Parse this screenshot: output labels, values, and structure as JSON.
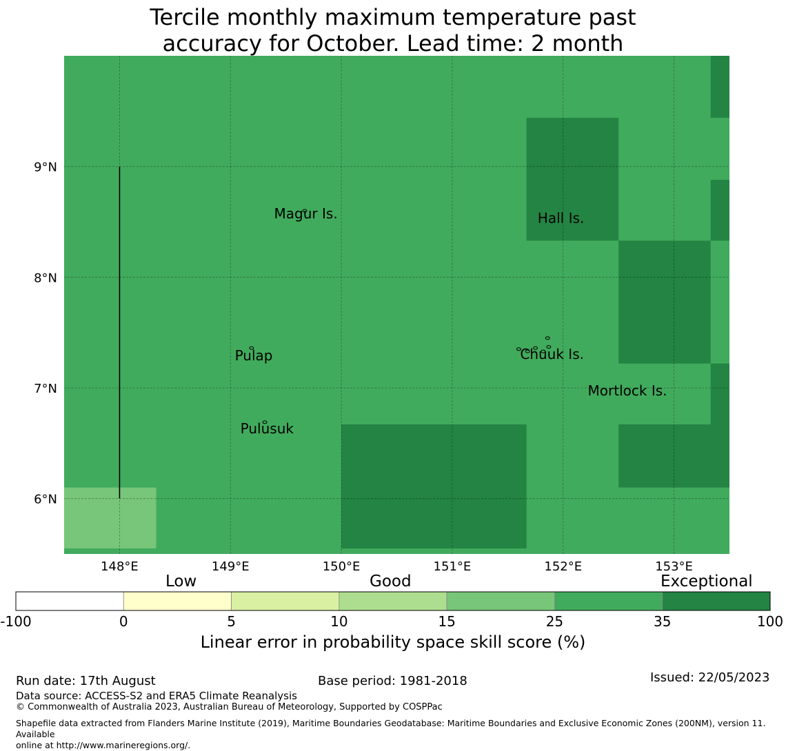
{
  "title_line1": "Tercile monthly maximum temperature past",
  "title_line2": "accuracy for October. Lead time: 2 month",
  "map": {
    "lon_range": [
      147.5,
      153.5
    ],
    "lat_range": [
      5.5,
      10.0
    ],
    "lat_ticks": [
      {
        "value": 9,
        "label": "9°N"
      },
      {
        "value": 8,
        "label": "8°N"
      },
      {
        "value": 7,
        "label": "7°N"
      },
      {
        "value": 6,
        "label": "6°N"
      }
    ],
    "lon_ticks": [
      {
        "value": 148,
        "label": "148°E"
      },
      {
        "value": 149,
        "label": "149°E"
      },
      {
        "value": 150,
        "label": "150°E"
      },
      {
        "value": 151,
        "label": "151°E"
      },
      {
        "value": 152,
        "label": "152°E"
      },
      {
        "value": 153,
        "label": "153°E"
      }
    ],
    "base_color": "#41ab5d",
    "skill_cells": [
      {
        "lon": [
          147.5,
          148.33
        ],
        "lat": [
          5.55,
          6.1
        ],
        "category": "15-25",
        "color": "#78c679"
      },
      {
        "lon": [
          150.0,
          151.67
        ],
        "lat": [
          5.55,
          6.67
        ],
        "category": "35-100",
        "color": "#238443"
      },
      {
        "lon": [
          151.67,
          152.5
        ],
        "lat": [
          8.33,
          9.44
        ],
        "category": "35-100",
        "color": "#238443"
      },
      {
        "lon": [
          152.5,
          153.33
        ],
        "lat": [
          7.22,
          8.33
        ],
        "category": "35-100",
        "color": "#238443"
      },
      {
        "lon": [
          152.5,
          153.5
        ],
        "lat": [
          6.1,
          6.67
        ],
        "category": "35-100",
        "color": "#238443"
      },
      {
        "lon": [
          153.33,
          153.5
        ],
        "lat": [
          6.67,
          7.22
        ],
        "category": "35-100",
        "color": "#238443"
      },
      {
        "lon": [
          153.33,
          153.5
        ],
        "lat": [
          8.33,
          8.88
        ],
        "category": "35-100",
        "color": "#238443"
      },
      {
        "lon": [
          153.33,
          153.5
        ],
        "lat": [
          9.44,
          10.0
        ],
        "category": "35-100",
        "color": "#238443"
      }
    ],
    "places": [
      {
        "name": "Magur Is.",
        "lon": 149.68,
        "lat": 8.53
      },
      {
        "name": "Hall Is.",
        "lon": 151.98,
        "lat": 8.49
      },
      {
        "name": "Pulap",
        "lon": 149.21,
        "lat": 7.25
      },
      {
        "name": "Chuuk Is.",
        "lon": 151.9,
        "lat": 7.26
      },
      {
        "name": "Mortlock Is.",
        "lon": 152.58,
        "lat": 6.93
      },
      {
        "name": "Pulusuk",
        "lon": 149.33,
        "lat": 6.59
      }
    ]
  },
  "colorbar": {
    "category_labels": [
      "Low",
      "Good",
      "Exceptional"
    ],
    "ticks": [
      "-100",
      "0",
      "5",
      "10",
      "15",
      "25",
      "35",
      "100"
    ],
    "colors": [
      "#ffffff",
      "#ffffcc",
      "#d9f0a3",
      "#addd8e",
      "#78c679",
      "#41ab5d",
      "#238443"
    ],
    "title": "Linear error in probability space skill score (%)"
  },
  "footer": {
    "run_date": "Run date: 17th August",
    "base_period": "Base period: 1981-2018",
    "issued": "Issued: 22/05/2023",
    "data_source": "Data source: ACCESS-S2 and ERA5 Climate Reanalysis",
    "copyright": "© Commonwealth of Australia 2023, Australian Bureau of Meteorology, Supported by COSPPac",
    "shapefile_line1": "Shapefile data extracted from Flanders Marine Institute (2019), Maritime Boundaries Geodatabase: Maritime Boundaries and Exclusive Economic Zones (200NM), version 11. Available",
    "shapefile_line2": "online at http://www.marineregions.org/."
  }
}
